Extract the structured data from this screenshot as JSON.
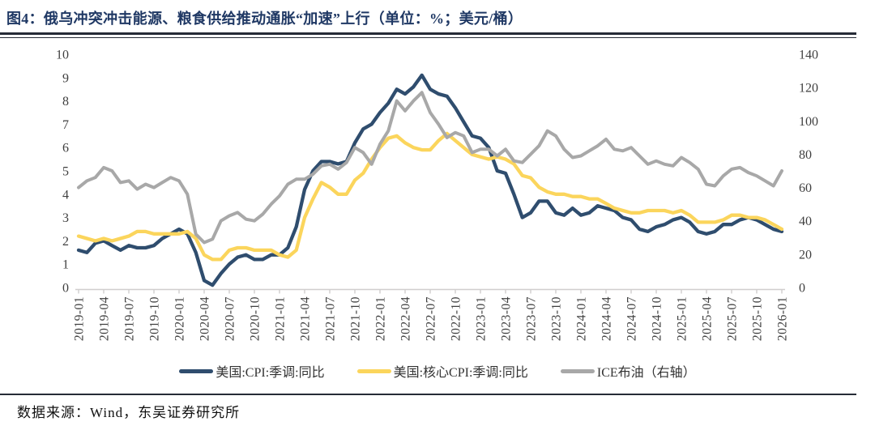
{
  "header": {
    "title": "图4：俄乌冲突冲击能源、粮食供给推动通胀“加速”上行（单位：%；美元/桶）"
  },
  "footer": {
    "source": "数据来源：Wind，东吴证券研究所"
  },
  "legend": [
    {
      "label": "美国:CPI:季调:同比"
    },
    {
      "label": "美国:核心CPI:季调:同比"
    },
    {
      "label": "ICE布油（右轴）"
    }
  ],
  "colors": {
    "title_navy": "#1F3864",
    "cpi_line": "#2F4D6E",
    "core_cpi_line": "#FBD55C",
    "brent_line": "#A8A8A8",
    "axis_text": "#3F3F3F",
    "axis_line": "#D0CECE"
  },
  "chart_data": {
    "type": "line",
    "title": "俄乌冲突冲击能源、粮食供给推动通胀“加速”上行",
    "units": "%；美元/桶",
    "x_start": "2019-01",
    "x_end": "2026-01",
    "x_frequency": "monthly",
    "x_tick_labels": [
      "2019-01",
      "2019-04",
      "2019-07",
      "2019-10",
      "2020-01",
      "2020-04",
      "2020-07",
      "2020-10",
      "2021-01",
      "2021-04",
      "2021-07",
      "2021-10",
      "2022-01",
      "2022-04",
      "2022-07",
      "2022-10",
      "2023-01",
      "2023-04",
      "2023-07",
      "2023-10",
      "2024-01",
      "2024-04",
      "2024-07",
      "2024-10",
      "2025-01",
      "2025-04",
      "2025-07",
      "2025-10",
      "2026-01"
    ],
    "left_axis": {
      "min": 0,
      "max": 10,
      "ticks": [
        0,
        1,
        2,
        3,
        4,
        5,
        6,
        7,
        8,
        9,
        10
      ]
    },
    "right_axis": {
      "min": 0,
      "max": 140,
      "ticks": [
        0,
        20,
        40,
        60,
        80,
        100,
        120,
        140
      ]
    },
    "grid": false,
    "legend_position": "bottom",
    "series": [
      {
        "name": "美国:CPI:季调:同比",
        "axis": "left",
        "color": "#2F4D6E",
        "values": [
          1.6,
          1.5,
          1.9,
          2.0,
          1.8,
          1.6,
          1.8,
          1.7,
          1.7,
          1.8,
          2.1,
          2.3,
          2.5,
          2.3,
          1.5,
          0.3,
          0.1,
          0.6,
          1.0,
          1.3,
          1.4,
          1.2,
          1.2,
          1.4,
          1.4,
          1.7,
          2.6,
          4.2,
          5.0,
          5.4,
          5.4,
          5.3,
          5.4,
          6.2,
          6.8,
          7.0,
          7.5,
          7.9,
          8.5,
          8.3,
          8.6,
          9.1,
          8.5,
          8.3,
          8.2,
          7.7,
          7.1,
          6.5,
          6.4,
          6.0,
          5.0,
          4.9,
          4.0,
          3.0,
          3.2,
          3.7,
          3.7,
          3.2,
          3.1,
          3.4,
          3.1,
          3.2,
          3.5,
          3.4,
          3.3,
          3.0,
          2.9,
          2.5,
          2.4,
          2.6,
          2.7,
          2.9,
          3.0,
          2.8,
          2.4,
          2.3,
          2.4,
          2.7,
          2.7,
          2.9,
          3.0,
          2.9,
          2.7,
          2.5,
          2.4
        ]
      },
      {
        "name": "美国:核心CPI:季调:同比",
        "axis": "left",
        "color": "#FBD55C",
        "values": [
          2.2,
          2.1,
          2.0,
          2.1,
          2.0,
          2.1,
          2.2,
          2.4,
          2.4,
          2.3,
          2.3,
          2.3,
          2.3,
          2.4,
          2.1,
          1.4,
          1.2,
          1.2,
          1.6,
          1.7,
          1.7,
          1.6,
          1.6,
          1.6,
          1.4,
          1.3,
          1.6,
          3.0,
          3.8,
          4.5,
          4.3,
          4.0,
          4.0,
          4.6,
          4.9,
          5.5,
          6.0,
          6.4,
          6.5,
          6.2,
          6.0,
          5.9,
          5.9,
          6.3,
          6.6,
          6.3,
          6.0,
          5.7,
          5.6,
          5.5,
          5.6,
          5.5,
          5.3,
          4.8,
          4.7,
          4.3,
          4.1,
          4.0,
          4.0,
          3.9,
          3.9,
          3.8,
          3.8,
          3.6,
          3.4,
          3.3,
          3.2,
          3.2,
          3.3,
          3.3,
          3.3,
          3.2,
          3.3,
          3.1,
          2.8,
          2.8,
          2.8,
          2.9,
          3.1,
          3.1,
          3.0,
          3.0,
          2.9,
          2.7,
          2.5
        ]
      },
      {
        "name": "ICE布油（右轴）",
        "axis": "right",
        "color": "#A8A8A8",
        "values": [
          60,
          64,
          66,
          72,
          70,
          63,
          64,
          59,
          62,
          60,
          63,
          66,
          64,
          56,
          32,
          27,
          29,
          40,
          43,
          45,
          41,
          40,
          44,
          50,
          55,
          62,
          65,
          65,
          68,
          73,
          74,
          71,
          75,
          84,
          81,
          74,
          86,
          94,
          112,
          106,
          112,
          117,
          105,
          98,
          90,
          93,
          91,
          81,
          83,
          83,
          79,
          83,
          76,
          75,
          80,
          85,
          94,
          91,
          83,
          78,
          79,
          82,
          85,
          89,
          83,
          82,
          84,
          79,
          74,
          76,
          74,
          73,
          78,
          75,
          71,
          62,
          61,
          67,
          71,
          72,
          69,
          67,
          64,
          61,
          70
        ]
      }
    ]
  }
}
